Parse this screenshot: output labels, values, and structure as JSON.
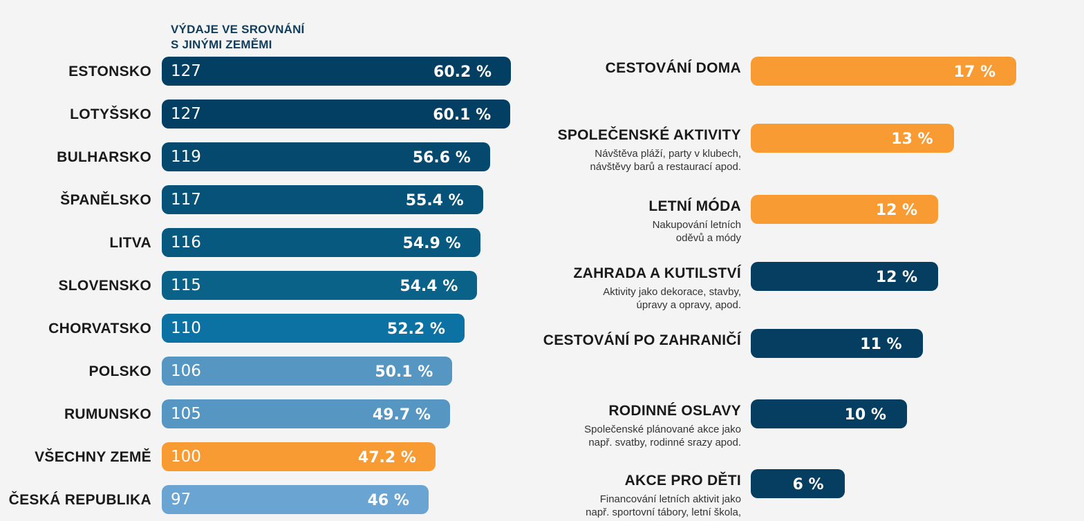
{
  "chart_data": [
    {
      "type": "bar",
      "title": "VÝDAJE VE SROVNÁNÍ S JINÝMI ZEMĚMI",
      "title_lines": [
        "VÝDAJE VE SROVNÁNÍ",
        "S JINÝMI ZEMĚMI"
      ],
      "categories": [
        "ESTONSKO",
        "LOTYŠSKO",
        "BULHARSKO",
        "ŠPANĚLSKO",
        "LITVA",
        "SLOVENSKO",
        "CHORVATSKO",
        "POLSKO",
        "RUMUNSKO",
        "VŠECHNY ZEMĚ",
        "ČESKÁ REPUBLIKA"
      ],
      "series": [
        {
          "values": [
            127,
            127,
            119,
            117,
            116,
            115,
            110,
            106,
            105,
            100,
            97
          ]
        },
        {
          "values": [
            60.2,
            60.1,
            56.6,
            55.4,
            54.9,
            54.4,
            52.2,
            50.1,
            49.7,
            47.2,
            46
          ]
        }
      ],
      "index_labels": [
        "127",
        "127",
        "119",
        "117",
        "116",
        "115",
        "110",
        "106",
        "105",
        "100",
        "97"
      ],
      "percent_labels": [
        "60.2 %",
        "60.1 %",
        "56.6 %",
        "55.4 %",
        "54.9 %",
        "54.4 %",
        "52.2 %",
        "50.1 %",
        "49.7 %",
        "47.2 %",
        "46 %"
      ],
      "bar_colors": [
        "#033f63",
        "#033f63",
        "#05496f",
        "#075278",
        "#085980",
        "#0a6289",
        "#0b72a3",
        "#5596c2",
        "#5596c2",
        "#f89b33",
        "#6aa4d2"
      ],
      "orientation": "horizontal",
      "grid": false,
      "legend": "none"
    },
    {
      "type": "bar",
      "categories": [
        "CESTOVÁNÍ DOMA",
        "SPOLEČENSKÉ AKTIVITY",
        "LETNÍ MÓDA",
        "ZAHRADA A KUTILSTVÍ",
        "CESTOVÁNÍ PO ZAHRANIČÍ",
        "RODINNÉ OSLAVY",
        "AKCE PRO DĚTI"
      ],
      "values": [
        17,
        13,
        12,
        12,
        11,
        10,
        6
      ],
      "value_labels": [
        "17 %",
        "13 %",
        "12 %",
        "12 %",
        "11 %",
        "10 %",
        "6 %"
      ],
      "descriptions": [
        [],
        [
          "Návštěva pláží, party v klubech,",
          "návštěvy barů a restaurací apod."
        ],
        [
          "Nakupování letních",
          "oděvů a módy"
        ],
        [
          "Aktivity jako dekorace, stavby,",
          "úpravy a opravy, apod."
        ],
        [],
        [
          "Společenské plánované akce jako",
          "např. svatby, rodinné srazy apod."
        ],
        [
          "Financování letních aktivit jako",
          "např. sportovní tábory, letní škola,"
        ]
      ],
      "bar_colors": [
        "#f89b33",
        "#f89b33",
        "#f89b33",
        "#053e60",
        "#053e60",
        "#053e60",
        "#053e60"
      ],
      "orientation": "horizontal",
      "grid": false,
      "legend": "none"
    }
  ]
}
